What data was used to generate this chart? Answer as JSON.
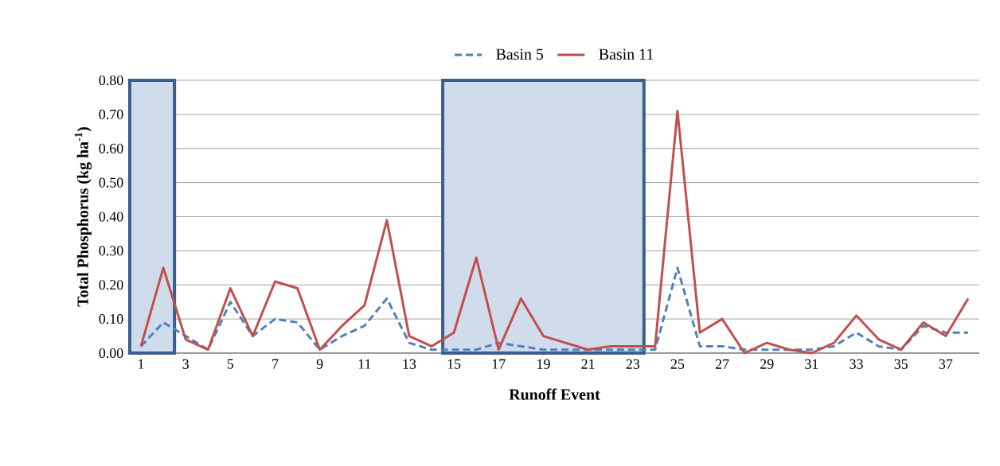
{
  "chart_data": {
    "type": "line",
    "xlabel": "Runoff Event",
    "ylabel": "Total Phosphorus (kg ha$^{-1}$)",
    "x": [
      1,
      2,
      3,
      4,
      5,
      6,
      7,
      8,
      9,
      10,
      11,
      12,
      13,
      14,
      15,
      16,
      17,
      18,
      19,
      20,
      21,
      22,
      23,
      24,
      25,
      26,
      27,
      28,
      29,
      30,
      31,
      32,
      33,
      34,
      35,
      36,
      37,
      38
    ],
    "series": [
      {
        "name": "Basin 5",
        "color": "#4f81bd",
        "line_style": "dashed",
        "values": [
          0.02,
          0.09,
          0.05,
          0.01,
          0.15,
          0.05,
          0.1,
          0.09,
          0.01,
          0.05,
          0.08,
          0.16,
          0.03,
          0.01,
          0.01,
          0.01,
          0.03,
          0.02,
          0.01,
          0.01,
          0.01,
          0.01,
          0.01,
          0.01,
          0.25,
          0.02,
          0.02,
          0.01,
          0.01,
          0.01,
          0.01,
          0.02,
          0.06,
          0.02,
          0.01,
          0.08,
          0.06,
          0.06
        ]
      },
      {
        "name": "Basin 11",
        "color": "#c0504d",
        "line_style": "solid",
        "values": [
          0.02,
          0.25,
          0.04,
          0.01,
          0.19,
          0.05,
          0.21,
          0.19,
          0.01,
          0.08,
          0.14,
          0.39,
          0.05,
          0.02,
          0.06,
          0.28,
          0.01,
          0.16,
          0.05,
          0.03,
          0.01,
          0.02,
          0.02,
          0.02,
          0.71,
          0.06,
          0.1,
          0.0,
          0.03,
          0.01,
          0.0,
          0.03,
          0.11,
          0.04,
          0.01,
          0.09,
          0.05,
          0.16
        ]
      }
    ],
    "xlim": [
      0.5,
      38.5
    ],
    "xticks": [
      1,
      3,
      5,
      7,
      9,
      11,
      13,
      15,
      17,
      19,
      21,
      23,
      25,
      27,
      29,
      31,
      33,
      35,
      37
    ],
    "ylim": [
      0,
      0.8
    ],
    "yticks": [
      {
        "value": 0,
        "label": "0.00"
      },
      {
        "value": 0.1,
        "label": "0.10"
      },
      {
        "value": 0.2,
        "label": "0.20"
      },
      {
        "value": 0.3,
        "label": "0.30"
      },
      {
        "value": 0.4,
        "label": "0.40"
      },
      {
        "value": 0.5,
        "label": "0.50"
      },
      {
        "value": 0.6,
        "label": "0.60"
      },
      {
        "value": 0.7,
        "label": "0.70"
      },
      {
        "value": 0.8,
        "label": "0.80"
      }
    ],
    "bands": [
      {
        "axis": "x",
        "from": 0.5,
        "to": 2.5,
        "color": "#d0dbec"
      },
      {
        "axis": "x",
        "from": 14.5,
        "to": 23.5,
        "color": "#d0dbec"
      }
    ],
    "grid": "y",
    "legend": "top"
  }
}
